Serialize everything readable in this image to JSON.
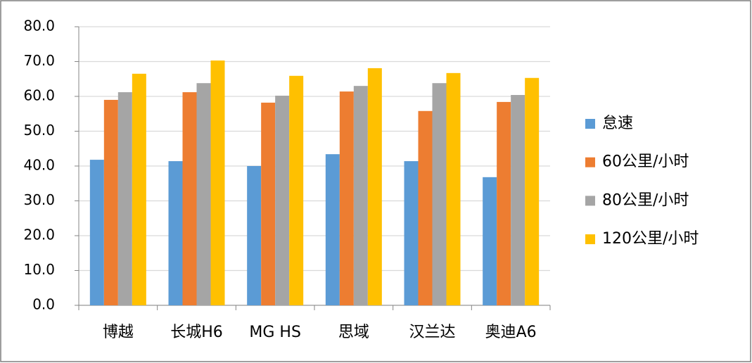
{
  "chart_data": {
    "type": "bar",
    "categories": [
      "博越",
      "长城H6",
      "MG HS",
      "思域",
      "汉兰达",
      "奥迪A6"
    ],
    "series": [
      {
        "name": "怠速",
        "color": "#5b9bd5",
        "values": [
          41.8,
          41.4,
          40.0,
          43.4,
          41.4,
          36.8
        ]
      },
      {
        "name": "60公里/小时",
        "color": "#ed7d31",
        "values": [
          59.0,
          61.2,
          58.2,
          61.4,
          55.8,
          58.4
        ]
      },
      {
        "name": "80公里/小时",
        "color": "#a5a5a5",
        "values": [
          61.2,
          63.8,
          60.2,
          63.0,
          63.8,
          60.4
        ]
      },
      {
        "name": "120公里/小时",
        "color": "#ffc000",
        "values": [
          66.5,
          70.3,
          65.9,
          68.1,
          66.7,
          65.3
        ]
      }
    ],
    "ylim": [
      0,
      80
    ],
    "yticks": [
      {
        "value": 0,
        "label": "0.0"
      },
      {
        "value": 10,
        "label": "10.0"
      },
      {
        "value": 20,
        "label": "20.0"
      },
      {
        "value": 30,
        "label": "30.0"
      },
      {
        "value": 40,
        "label": "40.0"
      },
      {
        "value": 50,
        "label": "50.0"
      },
      {
        "value": 60,
        "label": "60.0"
      },
      {
        "value": 70,
        "label": "70.0"
      },
      {
        "value": 80,
        "label": "80.0"
      }
    ],
    "grid": true,
    "legend": "right"
  }
}
